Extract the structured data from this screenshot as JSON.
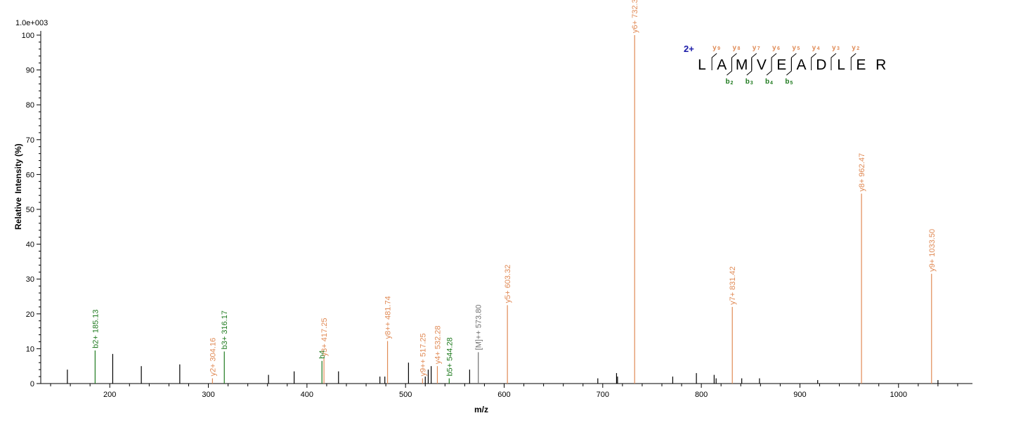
{
  "chart_data": {
    "type": "bar",
    "scale_label": "1.0e+003",
    "xlabel": "m/z",
    "ylabel_parts": [
      "Relative",
      "Intensity (%)"
    ],
    "xlim": [
      130,
      1075
    ],
    "ylim": [
      0,
      100
    ],
    "x_ticks": [
      200,
      300,
      400,
      500,
      600,
      700,
      800,
      900,
      1000
    ],
    "y_ticks": [
      0,
      10,
      20,
      30,
      40,
      50,
      60,
      70,
      80,
      90,
      100
    ],
    "colors": {
      "y_ion": "#e08a55",
      "b_ion": "#1e7a1e",
      "precursor": "#707070",
      "unmatched": "#000000",
      "charge": "#1a1aa8"
    },
    "unmatched_peaks": [
      {
        "x": 157,
        "y": 4
      },
      {
        "x": 203,
        "y": 8.5
      },
      {
        "x": 232,
        "y": 5
      },
      {
        "x": 271,
        "y": 5.5
      },
      {
        "x": 361,
        "y": 2.5
      },
      {
        "x": 387,
        "y": 3.5
      },
      {
        "x": 432,
        "y": 3.5
      },
      {
        "x": 474,
        "y": 2
      },
      {
        "x": 479,
        "y": 2
      },
      {
        "x": 503,
        "y": 6
      },
      {
        "x": 520,
        "y": 2
      },
      {
        "x": 523,
        "y": 4
      },
      {
        "x": 526,
        "y": 5
      },
      {
        "x": 565,
        "y": 4
      },
      {
        "x": 695,
        "y": 1.5
      },
      {
        "x": 714,
        "y": 3
      },
      {
        "x": 715,
        "y": 2
      },
      {
        "x": 771,
        "y": 2
      },
      {
        "x": 795,
        "y": 3
      },
      {
        "x": 813,
        "y": 2.5
      },
      {
        "x": 815,
        "y": 1.5
      },
      {
        "x": 841,
        "y": 1.5
      },
      {
        "x": 859,
        "y": 1.5
      },
      {
        "x": 918,
        "y": 1
      },
      {
        "x": 1040,
        "y": 1
      }
    ],
    "labeled_peaks": [
      {
        "x": 185.13,
        "y": 9.5,
        "label": "b2+ 185.13",
        "ion": "b"
      },
      {
        "x": 304.16,
        "y": 1.5,
        "label": "y2+ 304.16",
        "ion": "y"
      },
      {
        "x": 316.17,
        "y": 9.2,
        "label": "b3+ 316.17",
        "ion": "b"
      },
      {
        "x": 415.2,
        "y": 6.5,
        "label": "b4",
        "ion": "b"
      },
      {
        "x": 417.25,
        "y": 7.2,
        "label": "y3+ 417.25",
        "ion": "y"
      },
      {
        "x": 481.74,
        "y": 12.2,
        "label": "y8++ 481.74",
        "ion": "y"
      },
      {
        "x": 517.25,
        "y": 1.5,
        "label": "y9++ 517.25",
        "ion": "y"
      },
      {
        "x": 532.28,
        "y": 5,
        "label": "y4+ 532.28",
        "ion": "y"
      },
      {
        "x": 544.28,
        "y": 1.5,
        "label": "b5+ 544.28",
        "ion": "b"
      },
      {
        "x": 573.8,
        "y": 9,
        "label": "[M]++ 573.80",
        "ion": "precursor"
      },
      {
        "x": 603.32,
        "y": 22.5,
        "label": "y5+ 603.32",
        "ion": "y"
      },
      {
        "x": 732.36,
        "y": 100,
        "label": "y6+ 732.36",
        "ion": "y"
      },
      {
        "x": 831.42,
        "y": 22,
        "label": "y7+ 831.42",
        "ion": "y"
      },
      {
        "x": 962.47,
        "y": 54.5,
        "label": "y8+ 962.47",
        "ion": "y"
      },
      {
        "x": 1033.5,
        "y": 31.5,
        "label": "y9+ 1033.50",
        "ion": "y"
      }
    ]
  },
  "sequence": {
    "charge": "2+",
    "residues": [
      "L",
      "A",
      "M",
      "V",
      "E",
      "A",
      "D",
      "L",
      "E",
      "R"
    ],
    "y_ions": [
      {
        "after": 1,
        "num": "9"
      },
      {
        "after": 2,
        "num": "8"
      },
      {
        "after": 3,
        "num": "7"
      },
      {
        "after": 4,
        "num": "6"
      },
      {
        "after": 5,
        "num": "5"
      },
      {
        "after": 6,
        "num": "4"
      },
      {
        "after": 7,
        "num": "3"
      },
      {
        "after": 8,
        "num": "2"
      }
    ],
    "b_ions": [
      {
        "after": 2,
        "num": "2"
      },
      {
        "after": 3,
        "num": "3"
      },
      {
        "after": 4,
        "num": "4"
      },
      {
        "after": 5,
        "num": "5"
      }
    ]
  }
}
